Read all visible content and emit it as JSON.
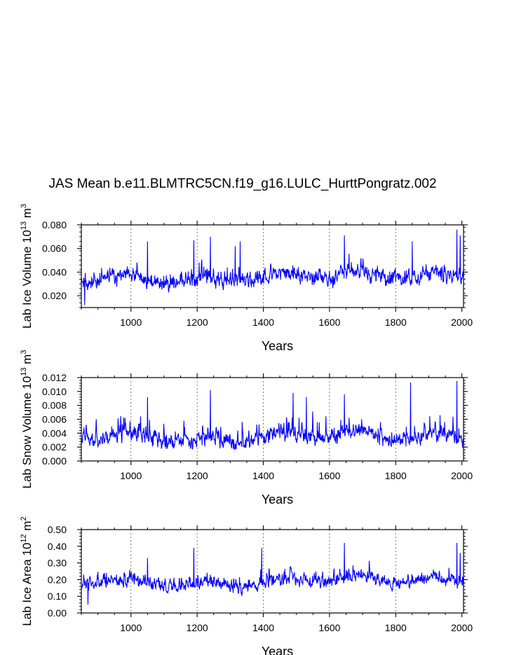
{
  "title": "JAS Mean b.e11.BLMTRC5CN.f19_g16.LULC_HurttPongratz.002",
  "series_color": "#0000ff",
  "chart_data": [
    {
      "type": "line",
      "name": "ice-volume",
      "ylabel": "Lab Ice Volume 10",
      "ylabel_exp": "13",
      "ylabel_unit": "m",
      "ylabel_unit_exp": "3",
      "xlabel": "Years",
      "xlim": [
        850,
        2005
      ],
      "ylim": [
        0.01,
        0.08
      ],
      "xticks": [
        1000,
        1200,
        1400,
        1600,
        1800,
        2000
      ],
      "xtick_labels": [
        "1000",
        "1200",
        "1400",
        "1600",
        "1800",
        "2000"
      ],
      "yticks": [
        0.02,
        0.04,
        0.06,
        0.08
      ],
      "ytick_labels": [
        "0.020",
        "0.040",
        "0.060",
        "0.080"
      ],
      "grid_x": [
        1000,
        1200,
        1400,
        1600,
        1800
      ],
      "profile": {
        "base": 0.032,
        "trend": 0.006,
        "noise": 0.0075,
        "spike": 0.018,
        "spike_rate": 0.09,
        "min": 0.012,
        "max": 0.076,
        "seed": 11
      },
      "peaks": [
        [
          860,
          0.012
        ],
        [
          1050,
          0.066
        ],
        [
          1190,
          0.067
        ],
        [
          1240,
          0.07
        ],
        [
          1315,
          0.062
        ],
        [
          1330,
          0.066
        ],
        [
          1645,
          0.071
        ],
        [
          1850,
          0.066
        ],
        [
          1985,
          0.076
        ],
        [
          1995,
          0.071
        ]
      ]
    },
    {
      "type": "line",
      "name": "snow-volume",
      "ylabel": "Lab Snow Volume 10",
      "ylabel_exp": "13",
      "ylabel_unit": "m",
      "ylabel_unit_exp": "3",
      "xlabel": "Years",
      "xlim": [
        850,
        2005
      ],
      "ylim": [
        0.0,
        0.012
      ],
      "xticks": [
        1000,
        1200,
        1400,
        1600,
        1800,
        2000
      ],
      "xtick_labels": [
        "1000",
        "1200",
        "1400",
        "1600",
        "1800",
        "2000"
      ],
      "yticks": [
        0.0,
        0.002,
        0.004,
        0.006,
        0.008,
        0.01,
        0.012
      ],
      "ytick_labels": [
        "0.000",
        "0.002",
        "0.004",
        "0.006",
        "0.008",
        "0.010",
        "0.012"
      ],
      "grid_x": [
        1000,
        1200,
        1400,
        1600,
        1800
      ],
      "profile": {
        "base": 0.0031,
        "trend": 0.0006,
        "noise": 0.0013,
        "spike": 0.0045,
        "spike_rate": 0.08,
        "min": 0.0004,
        "max": 0.0115,
        "seed": 23
      },
      "peaks": [
        [
          1050,
          0.0092
        ],
        [
          1240,
          0.0102
        ],
        [
          1490,
          0.0098
        ],
        [
          1530,
          0.0092
        ],
        [
          1645,
          0.0096
        ],
        [
          1845,
          0.0113
        ],
        [
          1985,
          0.0115
        ]
      ]
    },
    {
      "type": "line",
      "name": "ice-area",
      "ylabel": "Lab Ice Area 10",
      "ylabel_exp": "12",
      "ylabel_unit": "m",
      "ylabel_unit_exp": "2",
      "xlabel": "Years",
      "xlim": [
        850,
        2005
      ],
      "ylim": [
        0.0,
        0.5
      ],
      "xticks": [
        1000,
        1200,
        1400,
        1600,
        1800,
        2000
      ],
      "xtick_labels": [
        "1000",
        "1200",
        "1400",
        "1600",
        "1800",
        "2000"
      ],
      "yticks": [
        0.0,
        0.1,
        0.2,
        0.3,
        0.4,
        0.5
      ],
      "ytick_labels": [
        "0.00",
        "0.10",
        "0.20",
        "0.30",
        "0.40",
        "0.50"
      ],
      "grid_x": [
        1000,
        1200,
        1400,
        1600,
        1800
      ],
      "profile": {
        "base": 0.17,
        "trend": 0.03,
        "noise": 0.045,
        "spike": 0.11,
        "spike_rate": 0.09,
        "min": 0.05,
        "max": 0.42,
        "seed": 37
      },
      "peaks": [
        [
          870,
          0.05
        ],
        [
          1050,
          0.33
        ],
        [
          1190,
          0.39
        ],
        [
          1395,
          0.39
        ],
        [
          1645,
          0.42
        ],
        [
          1985,
          0.42
        ],
        [
          1995,
          0.36
        ]
      ]
    }
  ]
}
